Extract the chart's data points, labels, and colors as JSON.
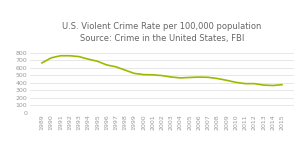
{
  "title_line1": "U.S. Violent Crime Rate per 100,000 population",
  "title_line2": "Source: Crime in the United States, FBI",
  "years": [
    1989,
    1990,
    1991,
    1992,
    1993,
    1994,
    1995,
    1996,
    1997,
    1998,
    1999,
    2000,
    2001,
    2002,
    2003,
    2004,
    2005,
    2006,
    2007,
    2008,
    2009,
    2010,
    2011,
    2012,
    2013,
    2014,
    2015
  ],
  "values": [
    663,
    730,
    758,
    758,
    747,
    713,
    685,
    636,
    611,
    567,
    523,
    507,
    504,
    494,
    475,
    463,
    469,
    474,
    471,
    455,
    431,
    404,
    387,
    387,
    368,
    362,
    373
  ],
  "line_color": "#9cba00",
  "background_color": "#ffffff",
  "ylim": [
    0,
    900
  ],
  "yticks": [
    0,
    100,
    200,
    300,
    400,
    500,
    600,
    700,
    800
  ],
  "title_fontsize": 6.0,
  "tick_fontsize": 4.5,
  "grid_color": "#dddddd",
  "text_color": "#999999",
  "title_color": "#666666"
}
